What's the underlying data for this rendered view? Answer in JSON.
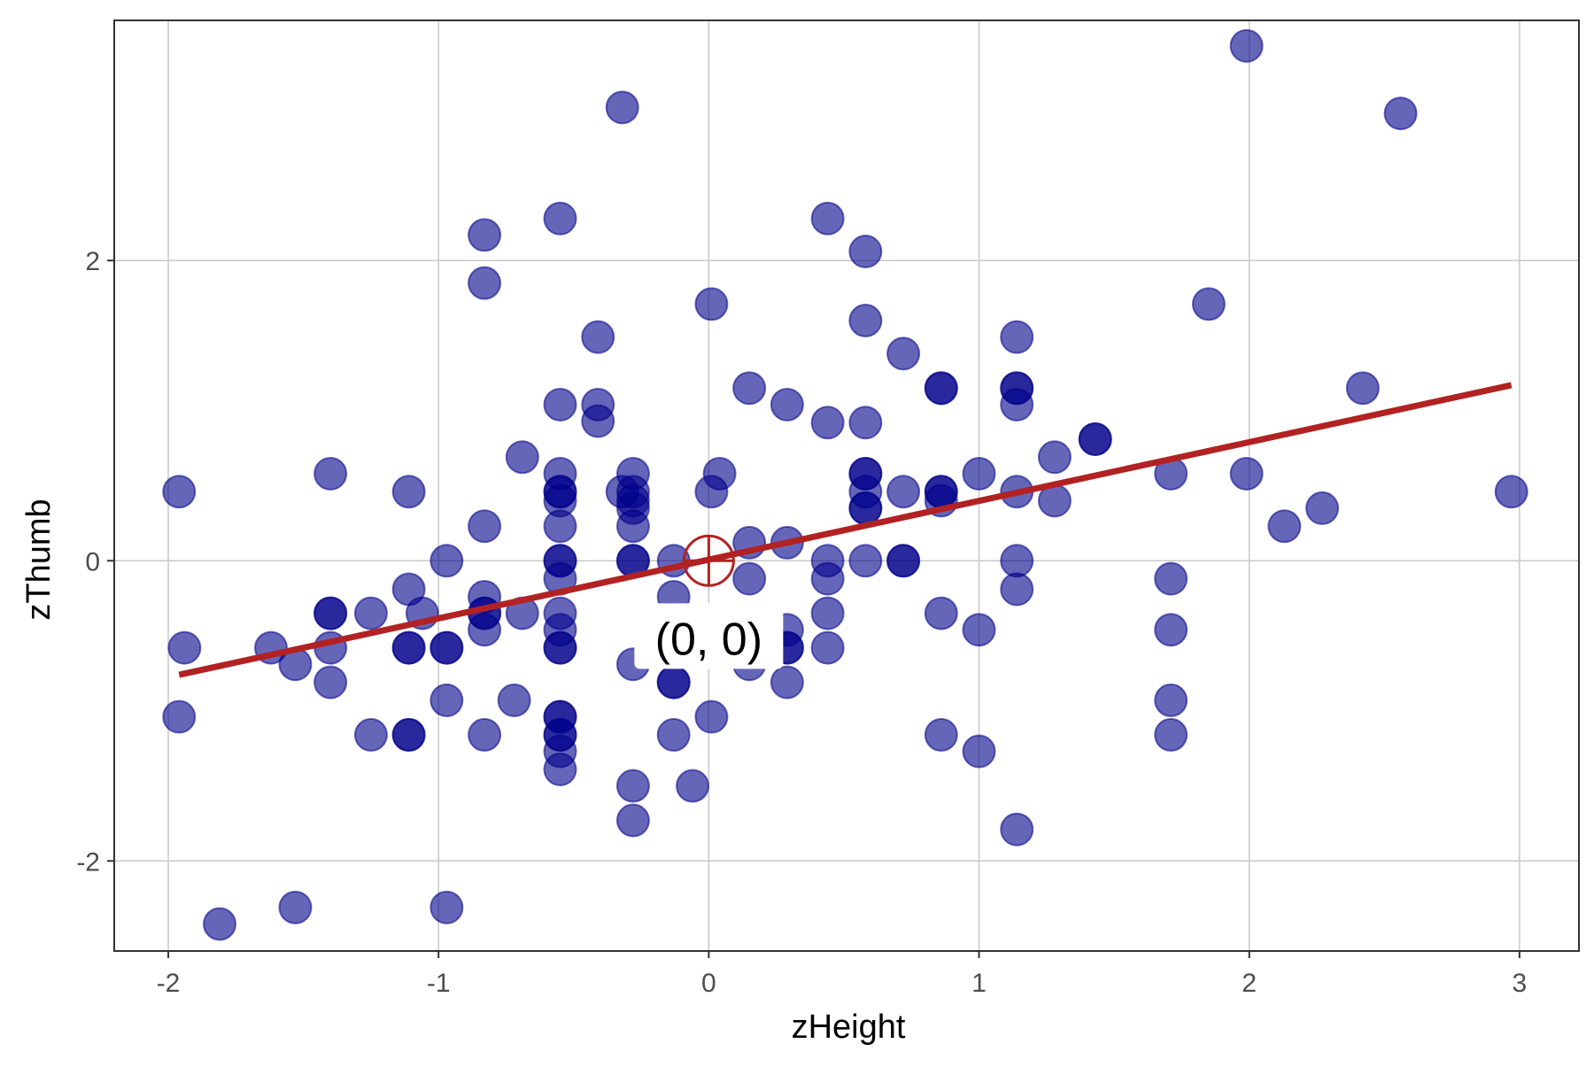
{
  "chart_data": {
    "type": "scatter",
    "xlabel": "zHeight",
    "ylabel": "zThumb",
    "xlim": [
      -2.2,
      3.22
    ],
    "ylim": [
      -2.6,
      3.6
    ],
    "x_ticks": [
      -2,
      -1,
      0,
      1,
      2,
      3
    ],
    "x_tick_labels": [
      "-2",
      "-1",
      "0",
      "1",
      "2",
      "3"
    ],
    "y_ticks": [
      -2,
      0,
      2
    ],
    "y_tick_labels": [
      "-2",
      "0",
      "2"
    ],
    "grid": true,
    "legend": "none",
    "colors": {
      "points": "#00008B",
      "point_opacity": 0.6,
      "line": "#B22222",
      "marker": "#B22222",
      "panel_border": "#333333",
      "grid": "#c8c8c8"
    },
    "points": [
      [
        1.99,
        3.43
      ],
      [
        -0.32,
        3.02
      ],
      [
        2.56,
        2.98
      ],
      [
        -0.55,
        2.28
      ],
      [
        0.44,
        2.28
      ],
      [
        -0.83,
        2.17
      ],
      [
        0.58,
        2.06
      ],
      [
        -0.83,
        1.85
      ],
      [
        0.01,
        1.71
      ],
      [
        1.85,
        1.71
      ],
      [
        0.58,
        1.6
      ],
      [
        -0.41,
        1.49
      ],
      [
        1.14,
        1.49
      ],
      [
        0.72,
        1.38
      ],
      [
        0.15,
        1.15
      ],
      [
        0.86,
        1.15
      ],
      [
        0.86,
        1.15
      ],
      [
        1.14,
        1.15
      ],
      [
        1.14,
        1.15
      ],
      [
        2.42,
        1.15
      ],
      [
        -0.55,
        1.04
      ],
      [
        -0.41,
        1.04
      ],
      [
        0.29,
        1.04
      ],
      [
        1.14,
        1.04
      ],
      [
        -0.41,
        0.93
      ],
      [
        0.44,
        0.92
      ],
      [
        0.58,
        0.92
      ],
      [
        1.43,
        0.81
      ],
      [
        1.43,
        0.81
      ],
      [
        -0.69,
        0.69
      ],
      [
        1.28,
        0.69
      ],
      [
        -1.4,
        0.58
      ],
      [
        -0.55,
        0.58
      ],
      [
        -0.28,
        0.58
      ],
      [
        0.04,
        0.58
      ],
      [
        0.58,
        0.58
      ],
      [
        0.58,
        0.58
      ],
      [
        1.0,
        0.58
      ],
      [
        1.71,
        0.58
      ],
      [
        1.99,
        0.58
      ],
      [
        -1.96,
        0.46
      ],
      [
        -1.11,
        0.46
      ],
      [
        -0.55,
        0.46
      ],
      [
        -0.55,
        0.46
      ],
      [
        -0.32,
        0.46
      ],
      [
        -0.28,
        0.46
      ],
      [
        0.01,
        0.46
      ],
      [
        0.58,
        0.46
      ],
      [
        0.72,
        0.46
      ],
      [
        0.86,
        0.46
      ],
      [
        0.86,
        0.46
      ],
      [
        1.14,
        0.46
      ],
      [
        2.97,
        0.46
      ],
      [
        -0.55,
        0.4
      ],
      [
        -0.28,
        0.4
      ],
      [
        0.86,
        0.4
      ],
      [
        1.28,
        0.4
      ],
      [
        -0.28,
        0.35
      ],
      [
        0.58,
        0.35
      ],
      [
        0.58,
        0.35
      ],
      [
        2.27,
        0.35
      ],
      [
        -0.83,
        0.23
      ],
      [
        -0.55,
        0.23
      ],
      [
        -0.28,
        0.23
      ],
      [
        2.13,
        0.23
      ],
      [
        0.15,
        0.12
      ],
      [
        0.29,
        0.12
      ],
      [
        -0.97,
        0.0
      ],
      [
        -0.55,
        0.0
      ],
      [
        -0.55,
        0.0
      ],
      [
        -0.28,
        0.0
      ],
      [
        -0.28,
        0.0
      ],
      [
        -0.13,
        0.0
      ],
      [
        0.44,
        0.0
      ],
      [
        0.58,
        0.0
      ],
      [
        0.72,
        0.0
      ],
      [
        0.72,
        0.0
      ],
      [
        1.14,
        0.0
      ],
      [
        -0.55,
        -0.12
      ],
      [
        0.15,
        -0.12
      ],
      [
        0.44,
        -0.12
      ],
      [
        1.71,
        -0.12
      ],
      [
        -1.11,
        -0.19
      ],
      [
        1.14,
        -0.19
      ],
      [
        -0.83,
        -0.24
      ],
      [
        -0.13,
        -0.24
      ],
      [
        -1.4,
        -0.35
      ],
      [
        -1.4,
        -0.35
      ],
      [
        -1.25,
        -0.35
      ],
      [
        -1.06,
        -0.35
      ],
      [
        -0.83,
        -0.35
      ],
      [
        -0.83,
        -0.35
      ],
      [
        -0.69,
        -0.35
      ],
      [
        -0.55,
        -0.35
      ],
      [
        0.44,
        -0.35
      ],
      [
        0.86,
        -0.35
      ],
      [
        -0.83,
        -0.46
      ],
      [
        -0.55,
        -0.46
      ],
      [
        0.29,
        -0.46
      ],
      [
        1.0,
        -0.46
      ],
      [
        1.71,
        -0.46
      ],
      [
        -1.94,
        -0.58
      ],
      [
        -1.62,
        -0.58
      ],
      [
        -1.4,
        -0.58
      ],
      [
        -1.11,
        -0.58
      ],
      [
        -1.11,
        -0.58
      ],
      [
        -0.97,
        -0.58
      ],
      [
        -0.97,
        -0.58
      ],
      [
        -0.55,
        -0.58
      ],
      [
        -0.55,
        -0.58
      ],
      [
        0.29,
        -0.58
      ],
      [
        0.29,
        -0.58
      ],
      [
        0.44,
        -0.58
      ],
      [
        -1.53,
        -0.69
      ],
      [
        -0.28,
        -0.69
      ],
      [
        0.15,
        -0.69
      ],
      [
        -1.4,
        -0.81
      ],
      [
        -0.13,
        -0.81
      ],
      [
        -0.13,
        -0.81
      ],
      [
        0.29,
        -0.81
      ],
      [
        -0.97,
        -0.93
      ],
      [
        -0.72,
        -0.93
      ],
      [
        1.71,
        -0.93
      ],
      [
        -1.96,
        -1.04
      ],
      [
        -0.55,
        -1.04
      ],
      [
        -0.55,
        -1.04
      ],
      [
        0.01,
        -1.04
      ],
      [
        -1.25,
        -1.16
      ],
      [
        -1.11,
        -1.16
      ],
      [
        -1.11,
        -1.16
      ],
      [
        -0.83,
        -1.16
      ],
      [
        -0.55,
        -1.16
      ],
      [
        -0.55,
        -1.16
      ],
      [
        -0.13,
        -1.16
      ],
      [
        0.86,
        -1.16
      ],
      [
        1.71,
        -1.16
      ],
      [
        1.0,
        -1.27
      ],
      [
        -0.55,
        -1.27
      ],
      [
        -0.55,
        -1.39
      ],
      [
        -0.28,
        -1.5
      ],
      [
        -0.06,
        -1.5
      ],
      [
        -0.28,
        -1.73
      ],
      [
        1.14,
        -1.79
      ],
      [
        -0.97,
        -2.31
      ],
      [
        -1.53,
        -2.31
      ],
      [
        -1.81,
        -2.42
      ]
    ],
    "regression_line": {
      "x": [
        -1.96,
        2.97
      ],
      "y": [
        -0.76,
        1.17
      ]
    },
    "origin_marker": {
      "x": 0,
      "y": 0
    },
    "annotation": {
      "text": "(0, 0)",
      "x": 0,
      "y": -0.52
    }
  }
}
